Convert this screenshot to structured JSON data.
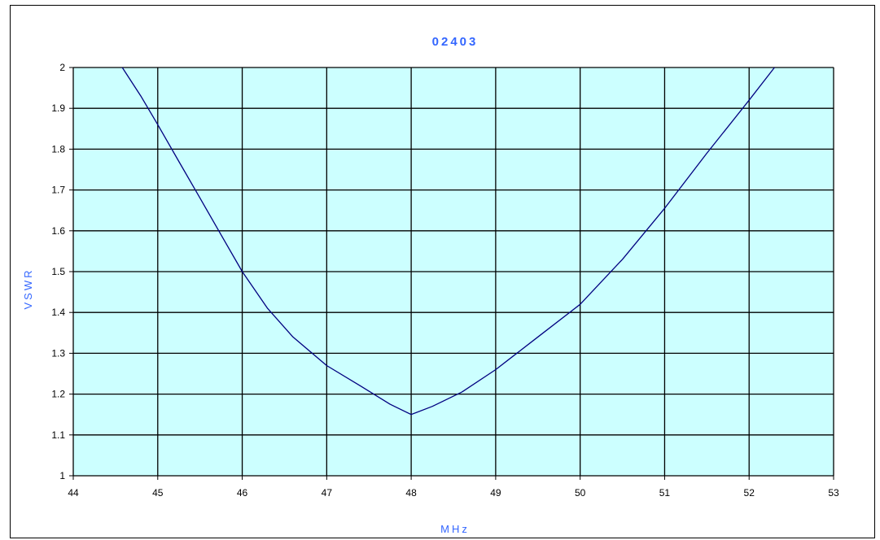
{
  "chart_data": {
    "type": "line",
    "title": "02403",
    "xlabel": "MHz",
    "ylabel": "VSWR",
    "xlim": [
      44,
      53
    ],
    "ylim": [
      1,
      2
    ],
    "x_ticks": [
      "44",
      "45",
      "46",
      "47",
      "48",
      "49",
      "50",
      "51",
      "52",
      "53"
    ],
    "y_ticks": [
      "1",
      "1.1",
      "1.2",
      "1.3",
      "1.4",
      "1.5",
      "1.6",
      "1.7",
      "1.8",
      "1.9",
      "2"
    ],
    "grid": true,
    "legend": "none",
    "colors": {
      "plot_bg": "#ccffff",
      "line": "#000080",
      "grid": "#000000",
      "label": "#3366ff"
    },
    "series": [
      {
        "x": [
          44.58,
          44.8,
          45.0,
          45.25,
          45.5,
          45.75,
          46.0,
          46.3,
          46.6,
          47.0,
          47.4,
          47.75,
          48.0,
          48.25,
          48.6,
          49.0,
          49.5,
          50.0,
          50.5,
          51.0,
          51.5,
          52.0,
          52.3
        ],
        "y": [
          2.0,
          1.93,
          1.86,
          1.77,
          1.68,
          1.59,
          1.5,
          1.41,
          1.34,
          1.27,
          1.22,
          1.175,
          1.15,
          1.17,
          1.205,
          1.26,
          1.34,
          1.42,
          1.53,
          1.655,
          1.79,
          1.92,
          2.0
        ]
      }
    ]
  }
}
